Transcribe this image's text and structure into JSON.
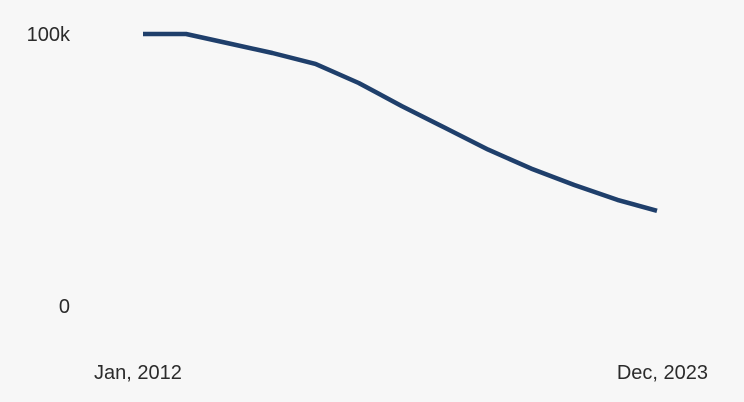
{
  "chart_data": {
    "type": "line",
    "title": "",
    "xlabel": "",
    "ylabel": "",
    "x": [
      "2012-01",
      "2013-01",
      "2014-01",
      "2015-01",
      "2016-01",
      "2017-01",
      "2018-01",
      "2019-01",
      "2020-01",
      "2021-01",
      "2022-01",
      "2023-01",
      "2023-12"
    ],
    "series": [
      {
        "values": [
          100000,
          100000,
          96500,
          93000,
          89000,
          82000,
          73500,
          65500,
          57500,
          50500,
          44500,
          39000,
          35000
        ]
      }
    ],
    "ylim": [
      0,
      100000
    ],
    "xlim": [
      "2012-01",
      "2023-12"
    ],
    "y_ticks": [
      {
        "value": 0,
        "label": "0"
      },
      {
        "value": 100000,
        "label": "100k"
      }
    ],
    "x_ticks": [
      {
        "value": "2012-01",
        "label": "Jan, 2012"
      },
      {
        "value": "2023-12",
        "label": "Dec, 2023"
      }
    ],
    "grid": false,
    "colors": {
      "line": "#1f3f6b",
      "background": "#f7f7f7",
      "text": "#2b2b2b"
    }
  }
}
